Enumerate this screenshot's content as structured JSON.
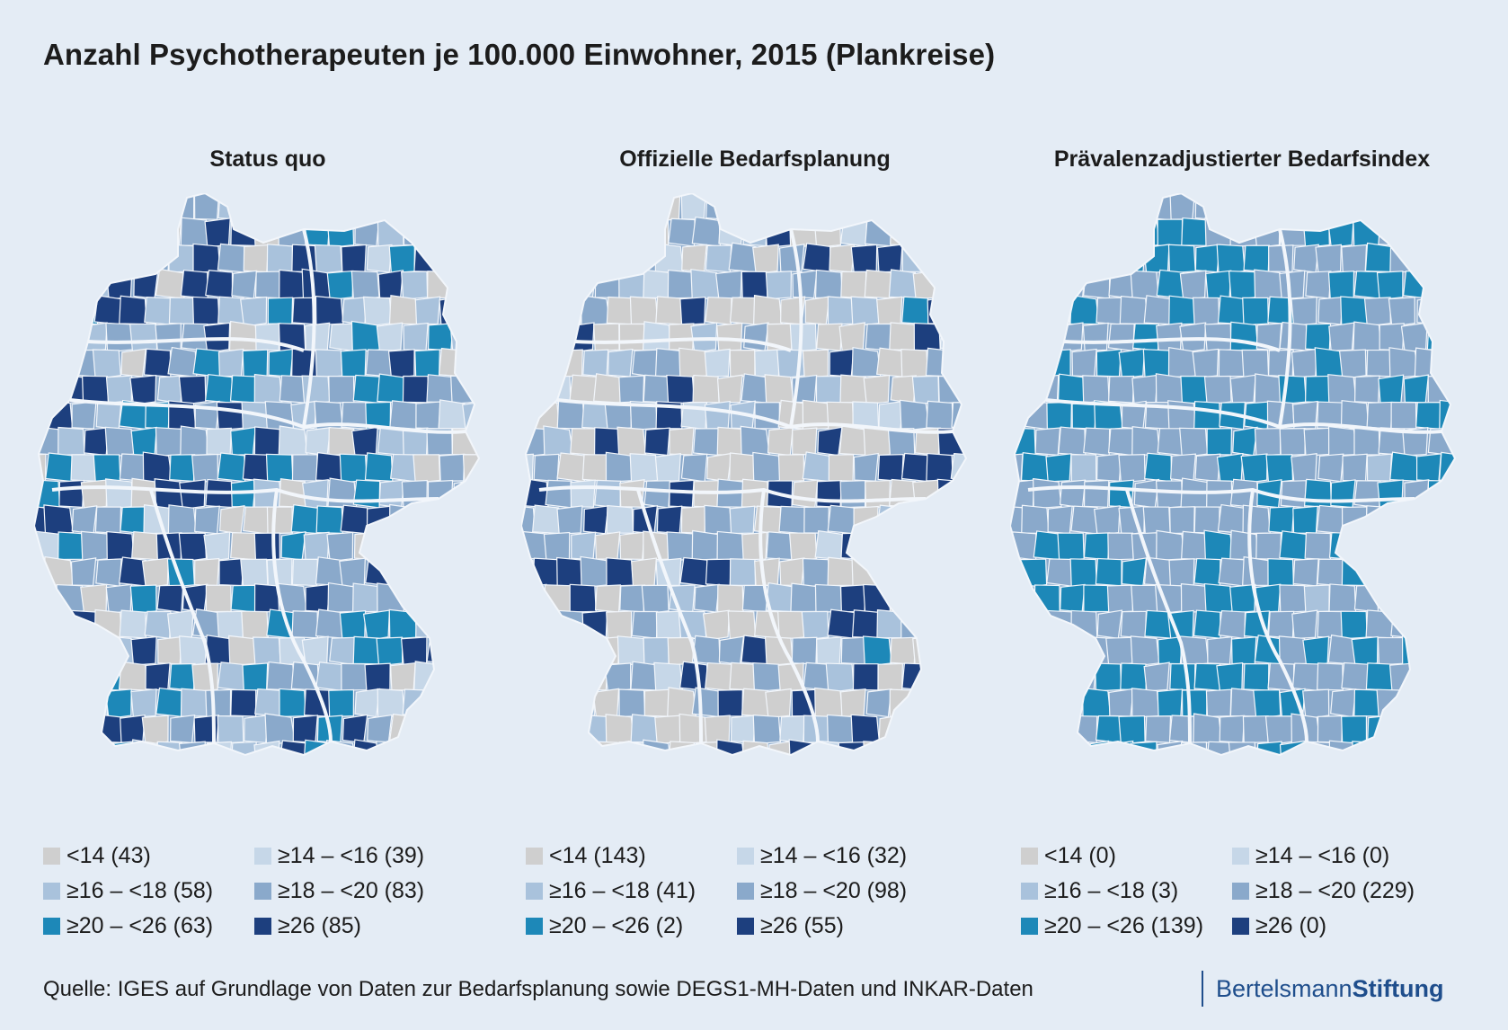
{
  "title": "Anzahl Psychotherapeuten je 100.000 Einwohner, 2015 (Plankreise)",
  "colors": {
    "background": "#e4ecf5",
    "border": "#f2f6fb",
    "c0": "#cfcfcf",
    "c1": "#c6d7e8",
    "c2": "#a9c2dc",
    "c3": "#8aa9cb",
    "c4": "#1d88b8",
    "c5": "#1d3f7e"
  },
  "legend_labels": [
    "<14",
    "≥14 – <16",
    "≥16 – <18",
    "≥18 – <20",
    "≥20 – <26",
    "≥26"
  ],
  "panels": [
    {
      "title": "Status quo",
      "counts": [
        43,
        39,
        58,
        83,
        63,
        85
      ],
      "legend_text": [
        "<14 (43)",
        "≥14 – <16 (39)",
        "≥16 – <18 (58)",
        "≥18 – <20 (83)",
        "≥20 – <26 (63)",
        "≥26 (85)"
      ]
    },
    {
      "title": "Offizielle Bedarfsplanung",
      "counts": [
        143,
        32,
        41,
        98,
        2,
        55
      ],
      "legend_text": [
        "<14 (143)",
        "≥14 – <16 (32)",
        "≥16 – <18 (41)",
        "≥18 – <20 (98)",
        "≥20 – <26 (2)",
        "≥26 (55)"
      ]
    },
    {
      "title": "Prävalenzadjustierter Bedarfsindex",
      "counts": [
        0,
        0,
        3,
        229,
        139,
        0
      ],
      "legend_text": [
        "<14 (0)",
        "≥14 – <16 (0)",
        "≥16 – <18 (3)",
        "≥18 – <20 (229)",
        "≥20 – <26 (139)",
        "≥26 (0)"
      ]
    }
  ],
  "source": "Quelle: IGES auf Grundlage von Daten zur Bedarfsplanung sowie DEGS1-MH-Daten und INKAR-Daten",
  "brand": {
    "part1": "Bertelsmann",
    "part2": "Stiftung"
  }
}
